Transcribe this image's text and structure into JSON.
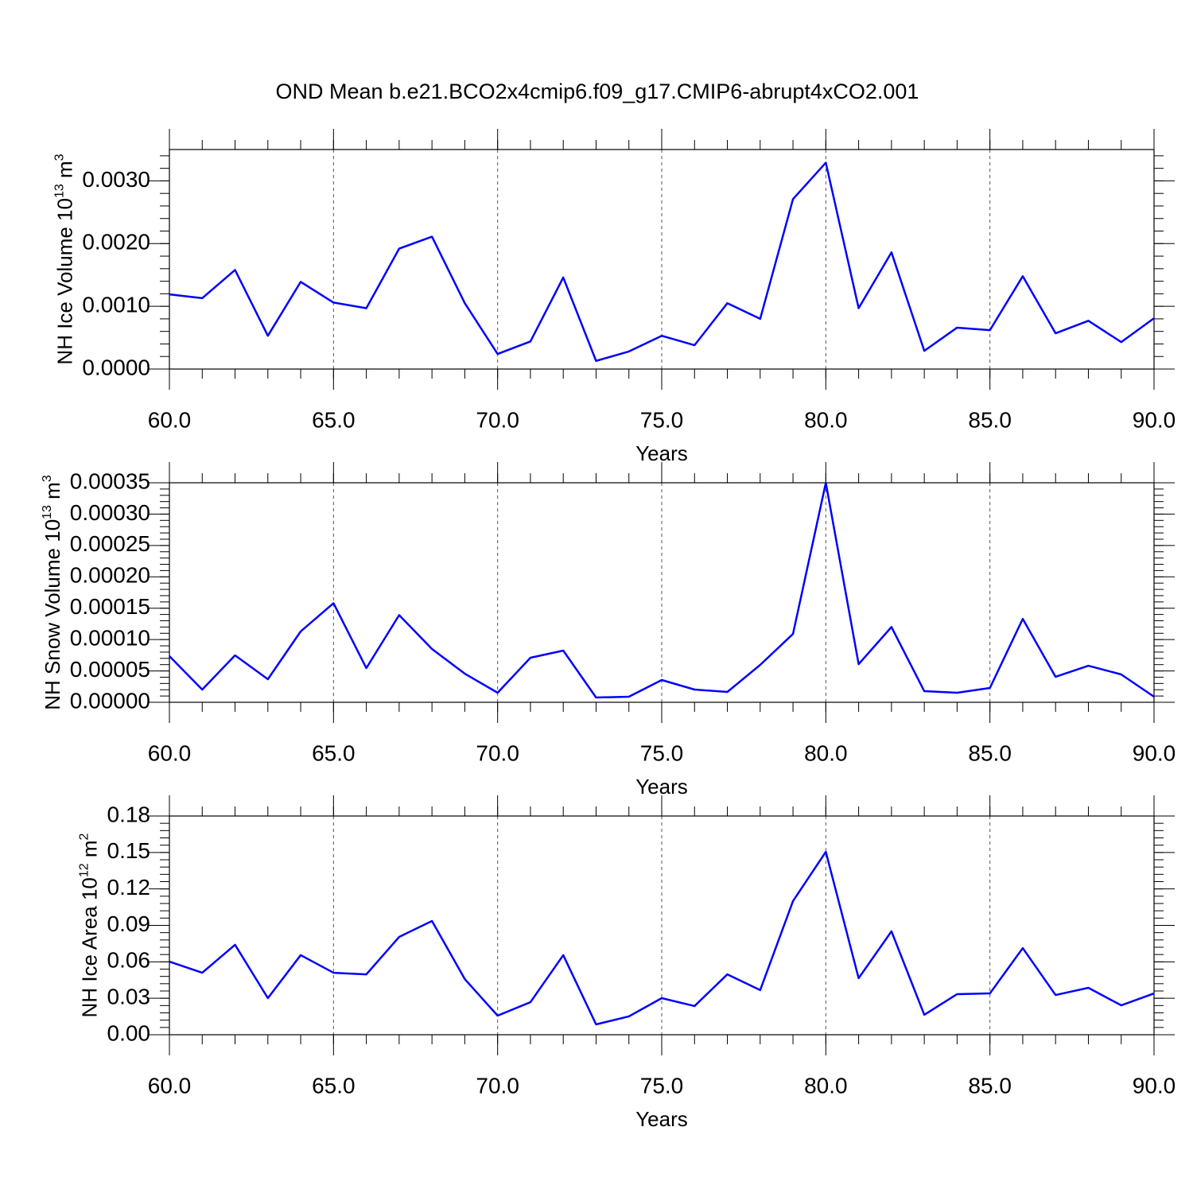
{
  "title": "OND Mean b.e21.BCO2x4cmip6.f09_g17.CMIP6-abrupt4xCO2.001",
  "chart_data": [
    {
      "type": "line",
      "xlabel": "Years",
      "ylabel": [
        "NH Ice Volume 10",
        "13",
        " m",
        "3"
      ],
      "x": [
        60,
        61,
        62,
        63,
        64,
        65,
        66,
        67,
        68,
        69,
        70,
        71,
        72,
        73,
        74,
        75,
        76,
        77,
        78,
        79,
        80,
        81,
        82,
        83,
        84,
        85,
        86,
        87,
        88,
        89,
        90
      ],
      "series": [
        {
          "color": "#0000ff",
          "values": [
            0.00119,
            0.00113,
            0.00158,
            0.00053,
            0.00139,
            0.00106,
            0.00097,
            0.00192,
            0.00211,
            0.00105,
            0.00024,
            0.00044,
            0.00146,
            0.00013,
            0.00028,
            0.00053,
            0.00038,
            0.00105,
            0.0008,
            0.00271,
            0.00329,
            0.00097,
            0.00186,
            0.00029,
            0.00066,
            0.00062,
            0.00148,
            0.00057,
            0.00077,
            0.00043,
            0.00081
          ]
        }
      ],
      "xlim": [
        60,
        90
      ],
      "xticks": [
        {
          "value": 60,
          "label": "60.0"
        },
        {
          "value": 65,
          "label": "65.0"
        },
        {
          "value": 70,
          "label": "70.0"
        },
        {
          "value": 75,
          "label": "75.0"
        },
        {
          "value": 80,
          "label": "80.0"
        },
        {
          "value": 85,
          "label": "85.0"
        },
        {
          "value": 90,
          "label": "90.0"
        }
      ],
      "ylim": [
        0,
        0.0035
      ],
      "yticks": [
        {
          "value": 0,
          "label": "0.0000"
        },
        {
          "value": 0.001,
          "label": "0.0010"
        },
        {
          "value": 0.002,
          "label": "0.0020"
        },
        {
          "value": 0.003,
          "label": "0.0030"
        }
      ],
      "grid": "x"
    },
    {
      "type": "line",
      "xlabel": "Years",
      "ylabel": [
        "NH Snow Volume 10",
        "13",
        " m",
        "3"
      ],
      "x": [
        60,
        61,
        62,
        63,
        64,
        65,
        66,
        67,
        68,
        69,
        70,
        71,
        72,
        73,
        74,
        75,
        76,
        77,
        78,
        79,
        80,
        81,
        82,
        83,
        84,
        85,
        86,
        87,
        88,
        89,
        90
      ],
      "series": [
        {
          "color": "#0000ff",
          "values": [
            7.35e-05,
            2.03e-05,
            7.48e-05,
            3.68e-05,
            0.000113,
            0.000158,
            5.45e-05,
            0.000139,
            8.49e-05,
            4.56e-05,
            1.52e-05,
            7.1e-05,
            8.24e-05,
            7.6e-06,
            8.9e-06,
            3.55e-05,
            2.03e-05,
            1.65e-05,
            5.96e-05,
            0.000109,
            0.00035,
            6.08e-05,
            0.00012,
            1.77e-05,
            1.52e-05,
            2.28e-05,
            0.000133,
            4.06e-05,
            5.83e-05,
            4.44e-05,
            8.9e-06
          ]
        }
      ],
      "xlim": [
        60,
        90
      ],
      "xticks": [
        {
          "value": 60,
          "label": "60.0"
        },
        {
          "value": 65,
          "label": "65.0"
        },
        {
          "value": 70,
          "label": "70.0"
        },
        {
          "value": 75,
          "label": "75.0"
        },
        {
          "value": 80,
          "label": "80.0"
        },
        {
          "value": 85,
          "label": "85.0"
        },
        {
          "value": 90,
          "label": "90.0"
        }
      ],
      "ylim": [
        0,
        0.00035
      ],
      "yticks": [
        {
          "value": 0,
          "label": "0.00000"
        },
        {
          "value": 5e-05,
          "label": "0.00005"
        },
        {
          "value": 0.0001,
          "label": "0.00010"
        },
        {
          "value": 0.00015,
          "label": "0.00015"
        },
        {
          "value": 0.0002,
          "label": "0.00020"
        },
        {
          "value": 0.00025,
          "label": "0.00025"
        },
        {
          "value": 0.0003,
          "label": "0.00030"
        },
        {
          "value": 0.00035,
          "label": "0.00035"
        }
      ],
      "grid": "x"
    },
    {
      "type": "line",
      "xlabel": "Years",
      "ylabel": [
        "NH Ice Area 10",
        "12",
        " m",
        "2"
      ],
      "x": [
        60,
        61,
        62,
        63,
        64,
        65,
        66,
        67,
        68,
        69,
        70,
        71,
        72,
        73,
        74,
        75,
        76,
        77,
        78,
        79,
        80,
        81,
        82,
        83,
        84,
        85,
        86,
        87,
        88,
        89,
        90
      ],
      "series": [
        {
          "color": "#0000ff",
          "values": [
            0.0602,
            0.051,
            0.074,
            0.0301,
            0.0655,
            0.051,
            0.0497,
            0.0805,
            0.0936,
            0.0458,
            0.0157,
            0.0268,
            0.0655,
            0.0085,
            0.0151,
            0.0301,
            0.0236,
            0.0497,
            0.0367,
            0.11,
            0.1505,
            0.0465,
            0.0851,
            0.0164,
            0.0334,
            0.034,
            0.0713,
            0.0327,
            0.0386,
            0.0242,
            0.034
          ]
        }
      ],
      "xlim": [
        60,
        90
      ],
      "xticks": [
        {
          "value": 60,
          "label": "60.0"
        },
        {
          "value": 65,
          "label": "65.0"
        },
        {
          "value": 70,
          "label": "70.0"
        },
        {
          "value": 75,
          "label": "75.0"
        },
        {
          "value": 80,
          "label": "80.0"
        },
        {
          "value": 85,
          "label": "85.0"
        },
        {
          "value": 90,
          "label": "90.0"
        }
      ],
      "ylim": [
        0,
        0.18
      ],
      "yticks": [
        {
          "value": 0,
          "label": "0.00"
        },
        {
          "value": 0.03,
          "label": "0.03"
        },
        {
          "value": 0.06,
          "label": "0.06"
        },
        {
          "value": 0.09,
          "label": "0.09"
        },
        {
          "value": 0.12,
          "label": "0.12"
        },
        {
          "value": 0.15,
          "label": "0.15"
        },
        {
          "value": 0.18,
          "label": "0.18"
        }
      ],
      "grid": "x"
    }
  ]
}
